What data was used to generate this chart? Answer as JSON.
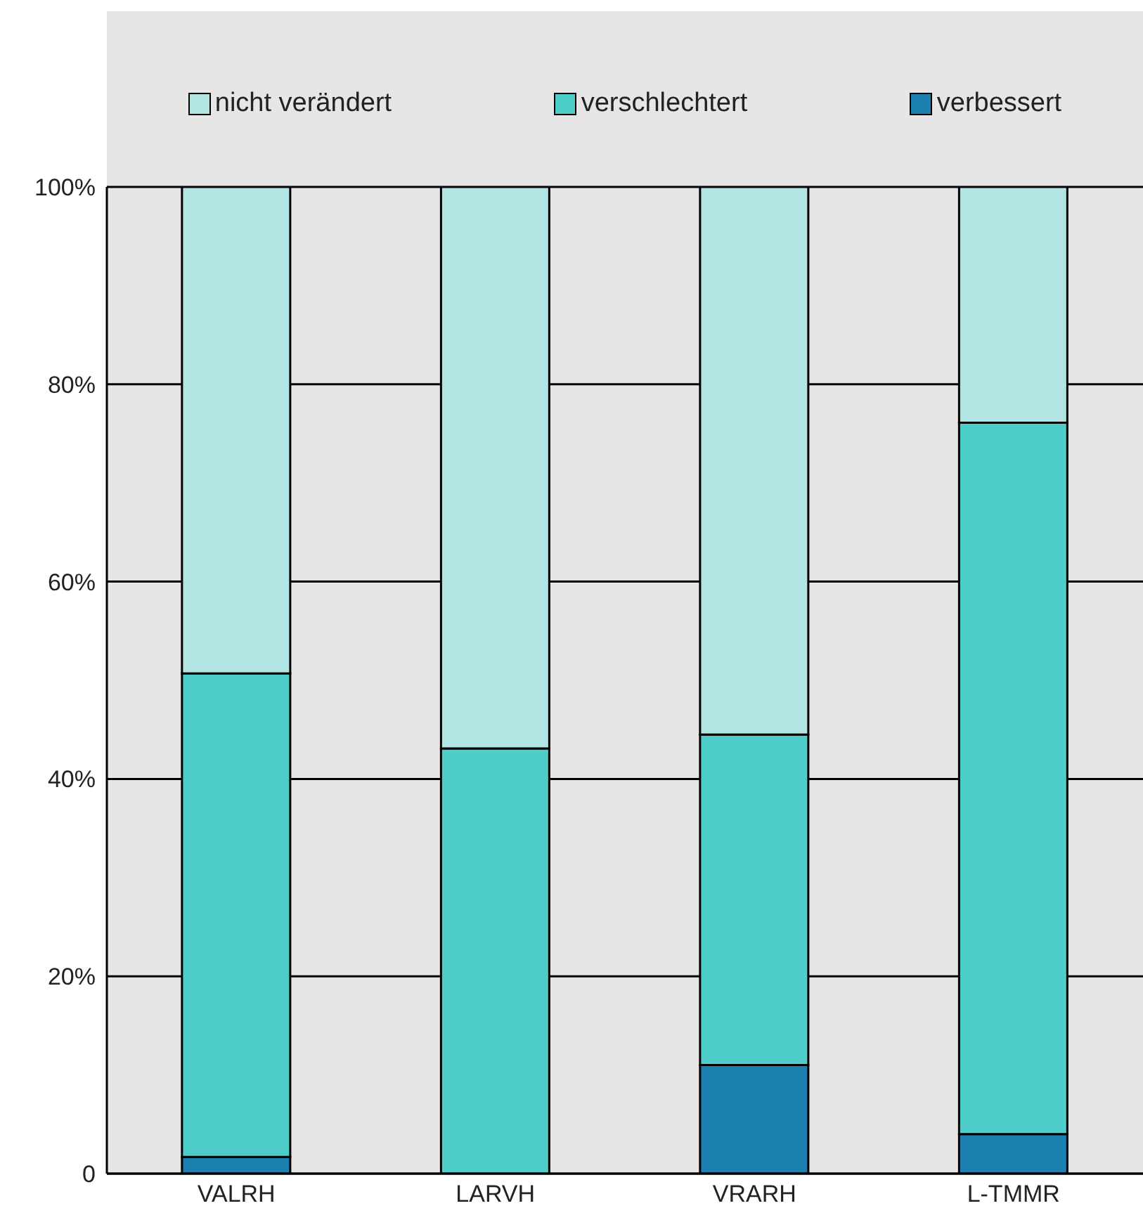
{
  "chart_data": {
    "type": "bar",
    "stacked": true,
    "categories": [
      "VALRH",
      "LARVH",
      "VRARH",
      "L-TMMR"
    ],
    "series": [
      {
        "name": "verbessert",
        "color": "#1c80b0",
        "values": [
          1.7,
          0,
          11.0,
          4.0
        ]
      },
      {
        "name": "verschlechtert",
        "color": "#4ecdcb",
        "values": [
          49.0,
          43.1,
          33.5,
          72.1
        ]
      },
      {
        "name": "nicht verändert",
        "color": "#b2e4e4",
        "values": [
          49.3,
          56.9,
          55.5,
          23.9
        ]
      }
    ],
    "ylim": [
      0,
      100
    ],
    "yticks": [
      0,
      {
        "value": 20,
        "label": "20%"
      },
      {
        "value": 40,
        "label": "40%"
      },
      {
        "value": 60,
        "label": "60%"
      },
      {
        "value": 80,
        "label": "80%"
      },
      {
        "value": 100,
        "label": "100%"
      }
    ],
    "grid": "y",
    "legend": "top"
  }
}
